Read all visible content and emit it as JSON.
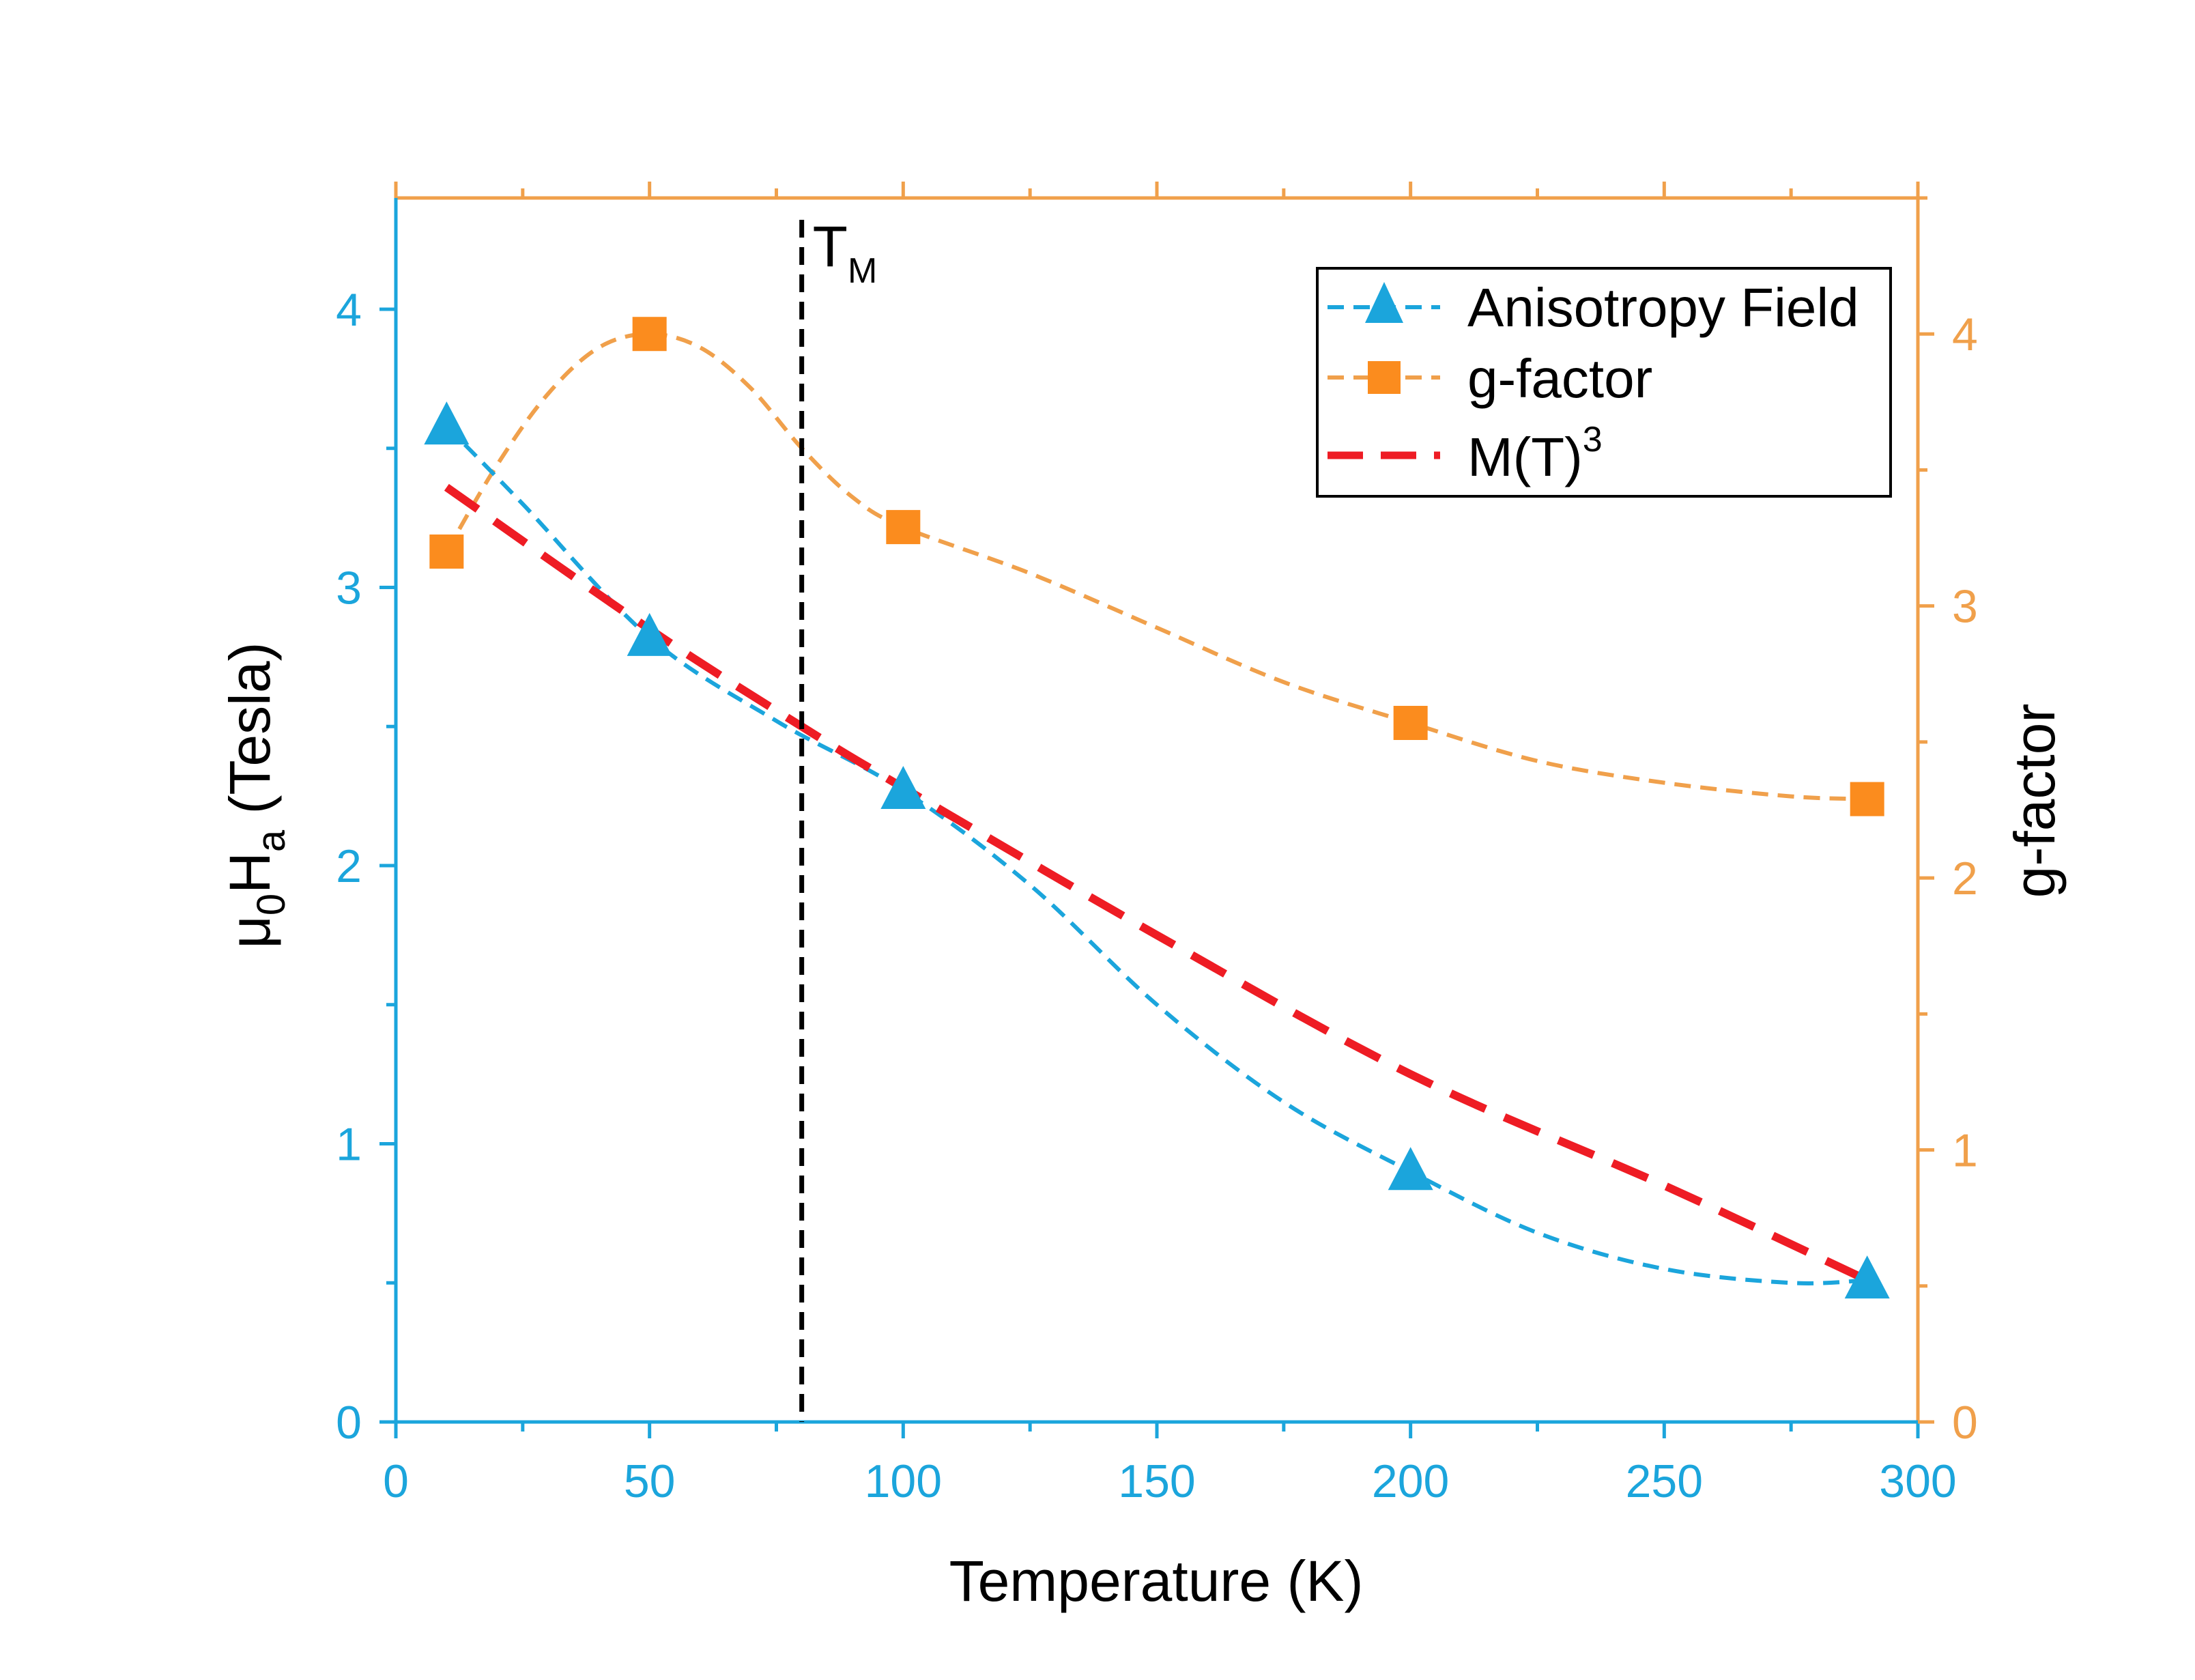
{
  "chart_data": {
    "type": "line",
    "x_axis": {
      "label": "Temperature (K)",
      "range": [
        0,
        300
      ],
      "ticks": [
        "0",
        "50",
        "100",
        "150",
        "200",
        "250",
        "300"
      ],
      "tick_values": [
        0,
        50,
        100,
        150,
        200,
        250,
        300
      ],
      "color": "#1ba5dc"
    },
    "y_axis_left": {
      "label_main": "μ",
      "label_sub1": "0",
      "label_mid": "H",
      "label_sub2": "a",
      "label_tail": " (Tesla)",
      "range": [
        0,
        4.4
      ],
      "ticks": [
        "0",
        "1",
        "2",
        "3",
        "4"
      ],
      "tick_values": [
        0,
        1,
        2,
        3,
        4
      ],
      "color": "#1ba5dc"
    },
    "y_axis_right": {
      "label": "g-factor",
      "range": [
        0,
        4.5
      ],
      "ticks": [
        "0",
        "1",
        "2",
        "3",
        "4"
      ],
      "tick_values": [
        0,
        1,
        2,
        3,
        4
      ],
      "color": "#f0a04b"
    },
    "vertical_marker": {
      "x": 80,
      "label_main": "T",
      "label_sub": "M",
      "color": "#000000"
    },
    "series": [
      {
        "name": "Anisotropy Field",
        "axis": "left",
        "marker": "triangle",
        "color": "#1ba5dc",
        "x": [
          10,
          50,
          100,
          200,
          290
        ],
        "y": [
          3.58,
          2.82,
          2.27,
          0.9,
          0.51
        ],
        "fit_x": [
          10,
          25,
          50,
          75,
          100,
          125,
          150,
          175,
          200,
          225,
          250,
          275,
          290
        ],
        "fit_y": [
          3.58,
          3.3,
          2.82,
          2.52,
          2.27,
          1.93,
          1.5,
          1.15,
          0.9,
          0.68,
          0.55,
          0.5,
          0.51
        ]
      },
      {
        "name": "g-factor",
        "axis": "right",
        "marker": "square",
        "color": "#fb8c1e",
        "line_color": "#f0a04b",
        "x": [
          10,
          50,
          100,
          200,
          290
        ],
        "y": [
          3.2,
          4.0,
          3.29,
          2.57,
          2.29
        ],
        "fit_x": [
          10,
          20,
          30,
          40,
          50,
          60,
          70,
          80,
          90,
          100,
          125,
          150,
          175,
          200,
          225,
          250,
          275,
          290
        ],
        "fit_y": [
          3.2,
          3.52,
          3.78,
          3.95,
          4.0,
          3.95,
          3.8,
          3.58,
          3.4,
          3.29,
          3.12,
          2.92,
          2.72,
          2.57,
          2.43,
          2.35,
          2.3,
          2.29
        ]
      },
      {
        "name": "M(T)",
        "name_superscript": "3",
        "axis": "left",
        "marker": "none",
        "color": "#ee1c24",
        "x": [
          10,
          50,
          80,
          100,
          150,
          200,
          250,
          290
        ],
        "y": [
          3.36,
          2.85,
          2.5,
          2.28,
          1.75,
          1.25,
          0.85,
          0.51
        ]
      }
    ],
    "legend_position": "top-right"
  }
}
